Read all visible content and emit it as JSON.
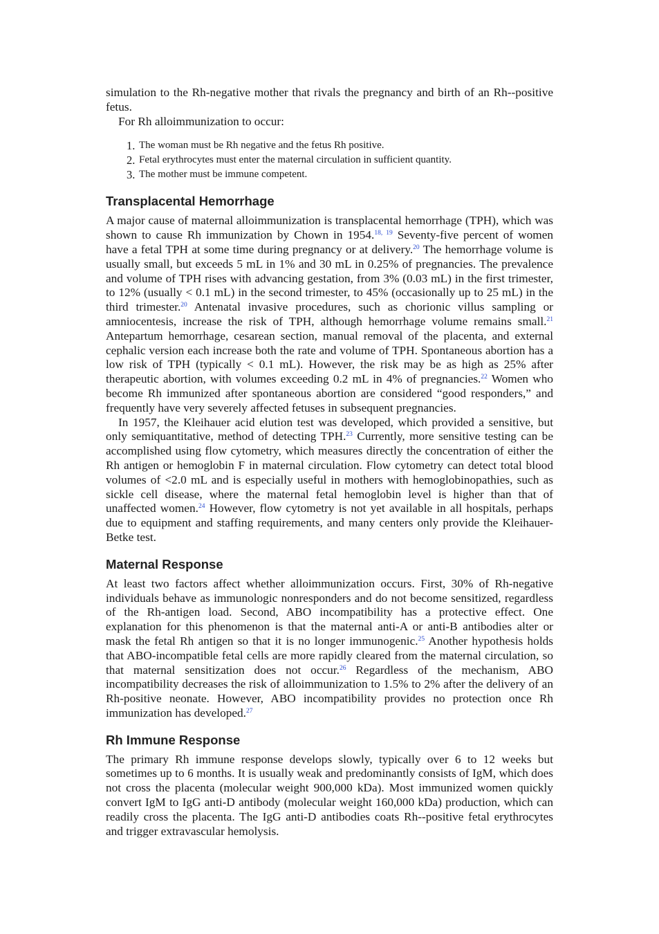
{
  "intro": {
    "para1": "simulation to the Rh-negative mother that rivals the pregnancy and birth of an Rh--positive fetus.",
    "para2": "For Rh alloimmunization to occur:",
    "list": [
      {
        "num": "1.",
        "text": "The woman must be Rh negative and the fetus Rh positive."
      },
      {
        "num": "2.",
        "text": "Fetal erythrocytes must enter the maternal circulation in sufficient quantity."
      },
      {
        "num": "3.",
        "text": "The mother must be immune competent."
      }
    ]
  },
  "section1": {
    "heading": "Transplacental Hemorrhage",
    "p1": {
      "t1": "A major cause of maternal alloimmunization is transplacental hemorrhage (TPH), which was shown to cause Rh immunization by Chown in 1954.",
      "r1": "18,  19",
      "t2": " Seventy-five percent of women have a fetal TPH at some time during pregnancy or at delivery.",
      "r2": "20",
      "t3": " The hemorrhage volume is usually small, but exceeds 5 mL in 1% and 30 mL in 0.25% of pregnancies. The prevalence and volume of TPH rises with advancing gestation, from 3% (0.03 mL) in the first trimester, to 12% (usually < 0.1 mL) in the second trimester, to 45% (occasionally up to 25 mL) in the third trimester.",
      "r3": "20",
      "t4": " Antenatal invasive procedures, such as chorionic villus sampling or amniocentesis, increase the risk of TPH, although hemorrhage volume remains small.",
      "r4": "21",
      "t5": " Antepartum hemorrhage, cesarean section, manual removal of the placenta, and external cephalic version each increase both the rate and volume of TPH. Spontaneous abortion has a low risk of TPH (typically < 0.1 mL). However, the risk may be as high as 25% after therapeutic abortion, with volumes exceeding 0.2 mL in 4% of pregnancies.",
      "r5": "22",
      "t6": " Women who become Rh immunized after spontaneous abortion are considered “good responders,” and frequently have very severely affected fetuses in subsequent pregnancies."
    },
    "p2": {
      "t1": "In 1957, the Kleihauer acid elution test was developed, which provided a sensitive, but only semiquantitative, method of detecting TPH.",
      "r1": "23",
      "t2": " Currently, more sensitive testing can be accomplished using flow cytometry, which measures directly the concentration of either the Rh antigen or hemoglobin F in maternal circulation. Flow cytometry can detect total blood volumes of <2.0 mL and is especially useful in mothers with hemoglobinopathies, such as sickle cell disease, where the maternal fetal hemoglobin level is higher than that of unaffected women.",
      "r2": "24",
      "t3": " However, flow cytometry is not yet available in all hospitals, perhaps due to equipment and staffing requirements, and many centers only provide the Kleihauer-Betke test."
    }
  },
  "section2": {
    "heading": "Maternal Response",
    "p1": {
      "t1": "At least two factors affect whether alloimmunization occurs. First, 30% of Rh-negative individuals behave as immunologic nonresponders and do not become sensitized, regardless of the Rh-antigen load. Second, ABO incompatibility has a protective effect. One explanation for this phenomenon is that the maternal anti-A or anti-B antibodies alter or mask the fetal Rh antigen so that it is no longer immunogenic.",
      "r1": "25",
      "t2": " Another hypothesis holds that ABO-incompatible fetal cells are more rapidly cleared from the maternal circulation, so that maternal sensitization does not occur.",
      "r2": "26",
      "t3": " Regardless of the mechanism, ABO incompatibility decreases the risk of alloimmunization to 1.5% to 2% after the delivery of an Rh-positive neonate. However, ABO incompatibility provides no protection once Rh immunization has developed.",
      "r3": "27"
    }
  },
  "section3": {
    "heading": "Rh Immune Response",
    "p1": "The primary Rh immune response develops slowly, typically over 6 to 12 weeks but sometimes up to 6 months. It is usually weak and predominantly consists of IgM, which does not cross the placenta (molecular weight 900,000 kDa). Most immunized women quickly convert IgM to IgG anti-D antibody (molecular weight 160,000 kDa) production, which can readily cross the placenta. The IgG anti-D antibodies coats Rh--positive fetal erythrocytes and trigger extravascular hemolysis."
  }
}
